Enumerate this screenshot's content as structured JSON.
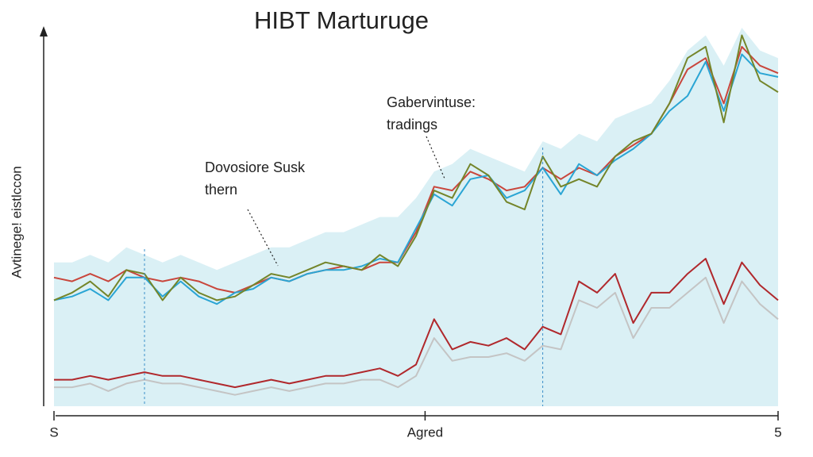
{
  "chart_data": {
    "type": "line",
    "title": "HIBT Marturuge",
    "y_label": "Avtinege! eistlccon",
    "x": [
      0,
      1,
      2,
      3,
      4,
      5,
      6,
      7,
      8,
      9,
      10,
      11,
      12,
      13,
      14,
      15,
      16,
      17,
      18,
      19,
      20,
      21,
      22,
      23,
      24,
      25,
      26,
      27,
      28,
      29,
      30,
      31,
      32,
      33,
      34,
      35,
      36,
      37,
      38,
      39,
      40
    ],
    "xlim": [
      0,
      40
    ],
    "ylim": [
      0,
      100
    ],
    "xticks": [
      {
        "value": 0,
        "label": "S"
      },
      {
        "value": 20.5,
        "label": "Agred"
      },
      {
        "value": 40,
        "label": "5"
      }
    ],
    "vlines": [
      5,
      27
    ],
    "annotations": [
      {
        "lines": [
          "Gabervintuse:",
          "tradings"
        ]
      },
      {
        "lines": [
          "Dovosiore Susk",
          "thern"
        ]
      }
    ],
    "series": [
      {
        "color": "#d3edf3",
        "fill": true,
        "values": [
          38,
          38,
          40,
          38,
          42,
          40,
          38,
          40,
          38,
          36,
          38,
          40,
          42,
          42,
          44,
          46,
          46,
          48,
          50,
          50,
          55,
          62,
          64,
          68,
          66,
          64,
          62,
          70,
          68,
          72,
          70,
          76,
          78,
          80,
          86,
          94,
          98,
          90,
          100,
          94,
          92
        ]
      },
      {
        "color": "#c4c4c4",
        "values": [
          5,
          5,
          6,
          4,
          6,
          7,
          6,
          6,
          5,
          4,
          3,
          4,
          5,
          4,
          5,
          6,
          6,
          7,
          7,
          5,
          8,
          18,
          12,
          13,
          13,
          14,
          12,
          16,
          15,
          28,
          26,
          30,
          18,
          26,
          26,
          30,
          34,
          22,
          33,
          27,
          23
        ]
      },
      {
        "color": "#b0282c",
        "values": [
          7,
          7,
          8,
          7,
          8,
          9,
          8,
          8,
          7,
          6,
          5,
          6,
          7,
          6,
          7,
          8,
          8,
          9,
          10,
          8,
          11,
          23,
          15,
          17,
          16,
          18,
          15,
          21,
          19,
          33,
          30,
          35,
          22,
          30,
          30,
          35,
          39,
          27,
          38,
          32,
          28
        ]
      },
      {
        "color": "#c9463c",
        "values": [
          34,
          33,
          35,
          33,
          36,
          34,
          33,
          34,
          33,
          31,
          30,
          32,
          34,
          33,
          35,
          36,
          37,
          36,
          38,
          38,
          46,
          58,
          57,
          62,
          60,
          57,
          58,
          63,
          60,
          63,
          61,
          66,
          69,
          72,
          80,
          89,
          92,
          80,
          95,
          90,
          88
        ]
      },
      {
        "color": "#2aa5d4",
        "values": [
          28,
          29,
          31,
          28,
          34,
          34,
          29,
          33,
          29,
          27,
          30,
          31,
          34,
          33,
          35,
          36,
          36,
          37,
          39,
          38,
          47,
          56,
          53,
          60,
          61,
          55,
          57,
          63,
          56,
          64,
          61,
          65,
          68,
          72,
          78,
          82,
          91,
          78,
          93,
          88,
          87
        ]
      },
      {
        "color": "#74852a",
        "values": [
          28,
          30,
          33,
          29,
          36,
          35,
          28,
          34,
          30,
          28,
          29,
          32,
          35,
          34,
          36,
          38,
          37,
          36,
          40,
          37,
          45,
          57,
          55,
          64,
          61,
          54,
          52,
          66,
          58,
          60,
          58,
          66,
          70,
          72,
          80,
          92,
          95,
          75,
          98,
          86,
          83
        ]
      }
    ]
  }
}
